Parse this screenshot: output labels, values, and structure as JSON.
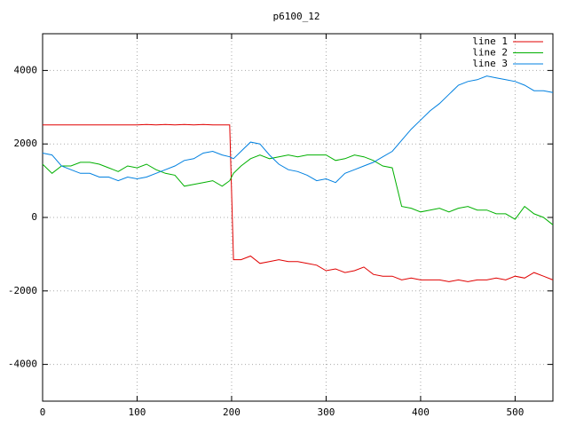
{
  "chart_data": {
    "type": "line",
    "title": "p6100_12",
    "x": [
      0,
      10,
      20,
      30,
      40,
      50,
      60,
      70,
      80,
      90,
      100,
      110,
      120,
      130,
      140,
      150,
      160,
      170,
      180,
      190,
      198,
      202,
      210,
      220,
      230,
      240,
      250,
      260,
      270,
      280,
      290,
      300,
      310,
      320,
      330,
      340,
      350,
      360,
      370,
      380,
      390,
      400,
      410,
      420,
      430,
      440,
      450,
      460,
      470,
      480,
      490,
      500,
      510,
      520,
      530,
      540
    ],
    "series": [
      {
        "name": "line 1",
        "color": "#e00000",
        "values": [
          2520,
          2520,
          2520,
          2520,
          2520,
          2520,
          2520,
          2520,
          2520,
          2520,
          2520,
          2530,
          2520,
          2530,
          2520,
          2530,
          2520,
          2530,
          2520,
          2520,
          2520,
          -1150,
          -1150,
          -1050,
          -1250,
          -1200,
          -1150,
          -1200,
          -1200,
          -1250,
          -1300,
          -1450,
          -1400,
          -1500,
          -1450,
          -1350,
          -1550,
          -1600,
          -1600,
          -1700,
          -1650,
          -1700,
          -1700,
          -1700,
          -1750,
          -1700,
          -1750,
          -1700,
          -1700,
          -1650,
          -1700,
          -1600,
          -1650,
          -1500,
          -1600,
          -1700
        ]
      },
      {
        "name": "line 2",
        "color": "#00b000",
        "values": [
          1450,
          1200,
          1400,
          1400,
          1500,
          1500,
          1450,
          1350,
          1250,
          1400,
          1350,
          1450,
          1300,
          1200,
          1150,
          850,
          900,
          950,
          1000,
          850,
          1000,
          1200,
          1400,
          1600,
          1700,
          1600,
          1650,
          1700,
          1650,
          1700,
          1700,
          1700,
          1550,
          1600,
          1700,
          1650,
          1550,
          1400,
          1350,
          300,
          250,
          150,
          200,
          250,
          150,
          250,
          300,
          200,
          200,
          100,
          100,
          -50,
          300,
          100,
          0,
          -200
        ]
      },
      {
        "name": "line 3",
        "color": "#0080e0",
        "values": [
          1750,
          1700,
          1400,
          1300,
          1200,
          1200,
          1100,
          1100,
          1000,
          1100,
          1050,
          1100,
          1200,
          1300,
          1400,
          1550,
          1600,
          1750,
          1800,
          1700,
          1650,
          1600,
          1800,
          2050,
          2000,
          1700,
          1450,
          1300,
          1250,
          1150,
          1000,
          1050,
          950,
          1200,
          1300,
          1400,
          1500,
          1650,
          1800,
          2100,
          2400,
          2650,
          2900,
          3100,
          3350,
          3600,
          3700,
          3750,
          3850,
          3800,
          3750,
          3700,
          3600,
          3450,
          3450,
          3400
        ]
      }
    ],
    "xlim": [
      0,
      540
    ],
    "ylim": [
      -5000,
      5000
    ],
    "xticks": [
      0,
      100,
      200,
      300,
      400,
      500
    ],
    "yticks": [
      -4000,
      -2000,
      0,
      2000,
      4000
    ],
    "grid": true,
    "legend": "top-right"
  }
}
